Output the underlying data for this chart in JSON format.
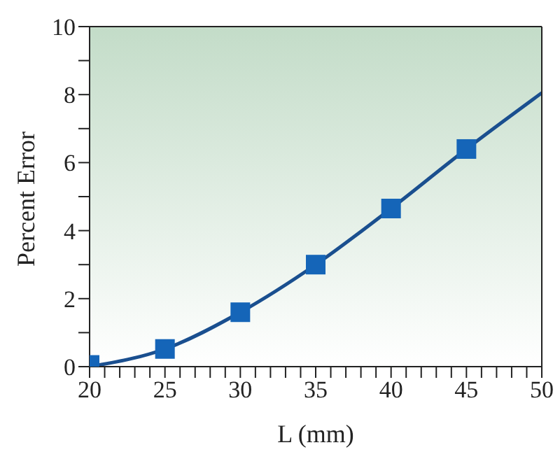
{
  "chart_data": {
    "type": "line",
    "xlabel": "L (mm)",
    "ylabel": "Percent Error",
    "xlim": [
      20,
      50
    ],
    "ylim": [
      0,
      10
    ],
    "xticks": [
      20,
      {
        "value": 21,
        "label": null
      },
      {
        "value": 22,
        "label": null
      },
      {
        "value": 23,
        "label": null
      },
      {
        "value": 24,
        "label": null
      },
      25,
      {
        "value": 26,
        "label": null
      },
      {
        "value": 27,
        "label": null
      },
      {
        "value": 28,
        "label": null
      },
      {
        "value": 29,
        "label": null
      },
      30,
      {
        "value": 31,
        "label": null
      },
      {
        "value": 32,
        "label": null
      },
      {
        "value": 33,
        "label": null
      },
      {
        "value": 34,
        "label": null
      },
      35,
      {
        "value": 36,
        "label": null
      },
      {
        "value": 37,
        "label": null
      },
      {
        "value": 38,
        "label": null
      },
      {
        "value": 39,
        "label": null
      },
      40,
      {
        "value": 41,
        "label": null
      },
      {
        "value": 42,
        "label": null
      },
      {
        "value": 43,
        "label": null
      },
      {
        "value": 44,
        "label": null
      },
      45,
      {
        "value": 46,
        "label": null
      },
      {
        "value": 47,
        "label": null
      },
      {
        "value": 48,
        "label": null
      },
      {
        "value": 49,
        "label": null
      },
      50
    ],
    "yticks": [
      0,
      {
        "value": 1,
        "label": null
      },
      2,
      {
        "value": 3,
        "label": null
      },
      4,
      {
        "value": 5,
        "label": null
      },
      6,
      {
        "value": 7,
        "label": null
      },
      8,
      {
        "value": 9,
        "label": null
      },
      10
    ],
    "grid": false,
    "series": [
      {
        "color": "#1a4f8f",
        "x": [
          20,
          25,
          30,
          35,
          40,
          45,
          50
        ],
        "values": [
          0,
          0.52,
          1.6,
          3.0,
          4.65,
          6.4,
          8.05
        ],
        "marker": "none",
        "line_style": "solid"
      },
      {
        "type": "scatter",
        "color": "#1565b8",
        "x": [
          20,
          25,
          30,
          35,
          40,
          45
        ],
        "values": [
          0.05,
          0.52,
          1.6,
          3.0,
          4.65,
          6.4
        ],
        "marker": "square"
      }
    ]
  }
}
